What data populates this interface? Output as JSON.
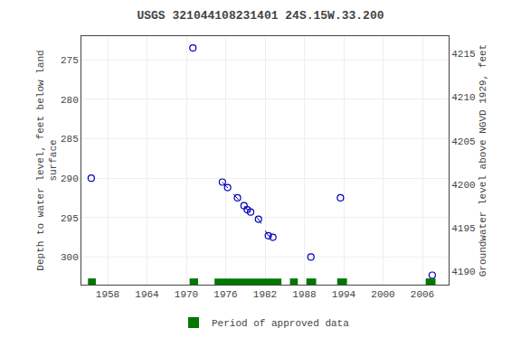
{
  "chart_data": {
    "type": "scatter",
    "title": "USGS 321044108231401 24S.15W.33.200",
    "ylabel": "Depth to water level, feet below land\nsurface",
    "y2label": "Groundwater level above NGVD 1929, feet",
    "xlim": [
      1954,
      2010
    ],
    "xticks": [
      1958,
      1964,
      1970,
      1976,
      1982,
      1988,
      1994,
      2000,
      2006
    ],
    "ylim": [
      303.5,
      272.0
    ],
    "yticks": [
      275,
      280,
      285,
      290,
      295,
      300
    ],
    "y2lim": [
      4188.5,
      4217.0
    ],
    "y2ticks": [
      4215,
      4210,
      4205,
      4200,
      4195,
      4190
    ],
    "grid": true,
    "legend": "bottom",
    "series": [
      {
        "type": "line",
        "line_style": "dashed",
        "color": "#0000bb",
        "x": [
          1975.5,
          1976.3,
          1977.8,
          1978.8,
          1979.3,
          1979.8,
          1981.0,
          1982.5,
          1983.2
        ],
        "values": [
          290.5,
          291.2,
          292.5,
          293.5,
          294.0,
          294.3,
          295.2,
          297.3,
          297.5
        ]
      },
      {
        "type": "scatter",
        "marker": "circle-open",
        "color": "#0000bb",
        "x": [
          1955.5,
          1971.0,
          1975.5,
          1976.3,
          1977.8,
          1978.8,
          1979.3,
          1979.8,
          1981.0,
          1982.5,
          1983.2,
          1989.0,
          1993.5,
          2007.5
        ],
        "values": [
          290.0,
          273.5,
          290.5,
          291.2,
          292.5,
          293.5,
          294.0,
          294.3,
          295.2,
          297.3,
          297.5,
          300.0,
          292.5,
          302.3
        ]
      },
      {
        "type": "bar",
        "name": "Period of approved data",
        "color": "#007700",
        "x_start": [
          1955.0,
          1970.5,
          1974.3,
          1985.8,
          1988.3,
          1993.0,
          2006.5
        ],
        "x_end": [
          1956.2,
          1971.8,
          1984.5,
          1987.0,
          1989.8,
          1994.5,
          2008.0
        ]
      }
    ]
  }
}
